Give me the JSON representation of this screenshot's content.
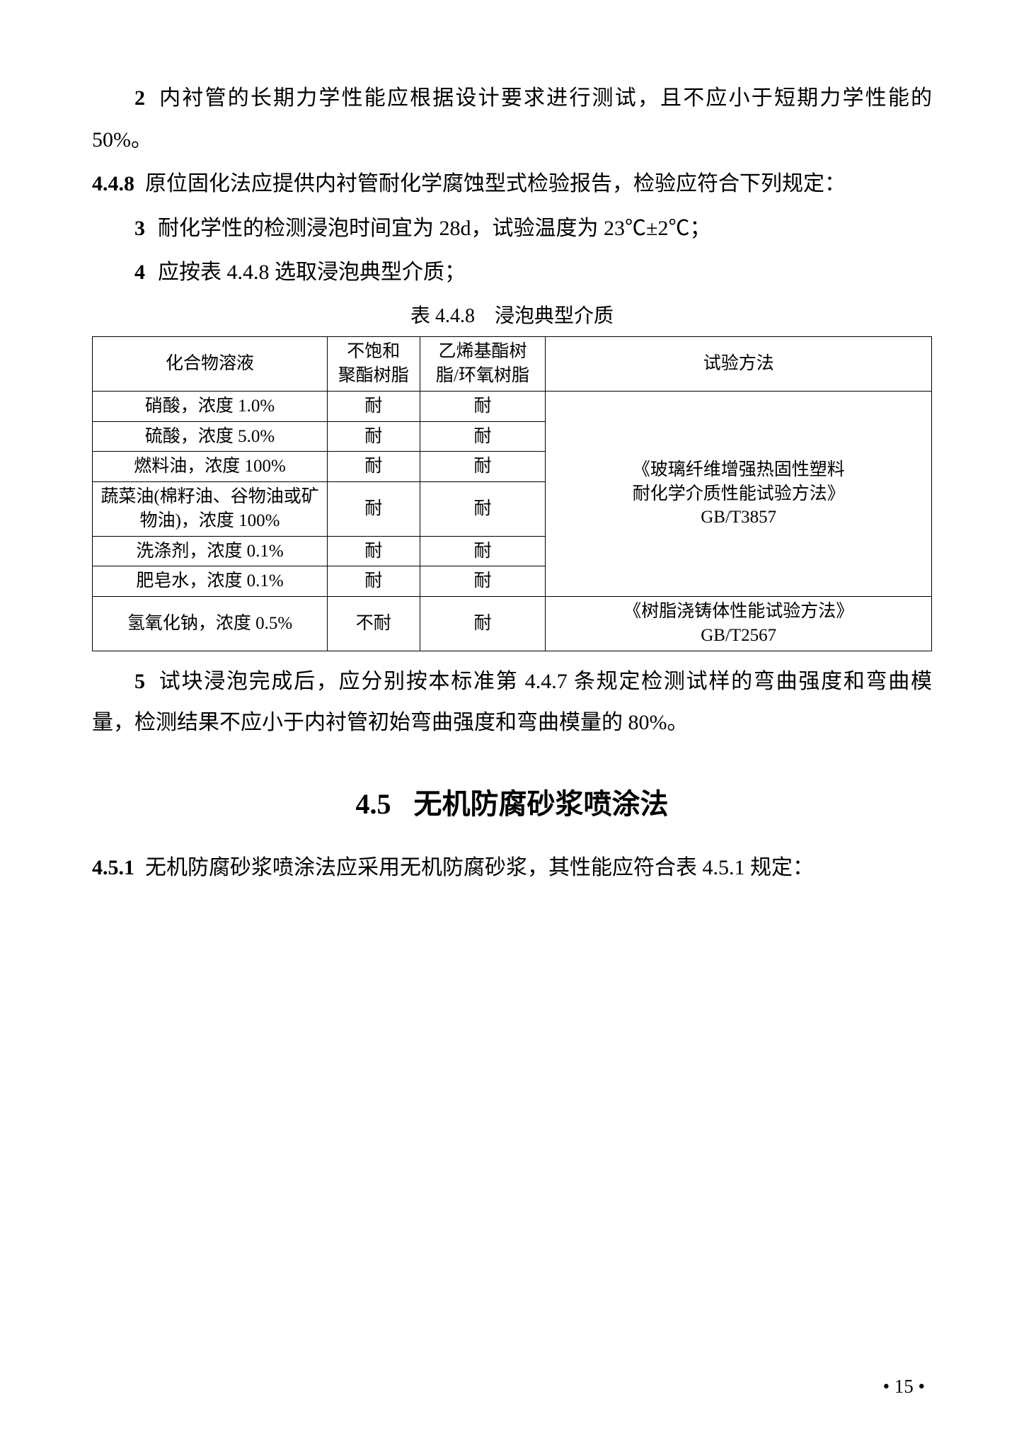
{
  "paragraphs": {
    "p1_num": "2",
    "p1_text": "内衬管的长期力学性能应根据设计要求进行测试，且不应小于短期力学性能的 50%。",
    "p2_num": "4.4.8",
    "p2_text": "原位固化法应提供内衬管耐化学腐蚀型式检验报告，检验应符合下列规定：",
    "p3_num": "3",
    "p3_text": "耐化学性的检测浸泡时间宜为 28d，试验温度为 23℃±2℃；",
    "p4_num": "4",
    "p4_text": "应按表 4.4.8 选取浸泡典型介质；",
    "p5_num": "5",
    "p5_text": "试块浸泡完成后，应分别按本标准第 4.4.7 条规定检测试样的弯曲强度和弯曲模量，检测结果不应小于内衬管初始弯曲强度和弯曲模量的 80%。"
  },
  "table448": {
    "title_prefix": "表",
    "title_num": "4.4.8",
    "title_text": "浸泡典型介质",
    "headers": {
      "compound": "化合物溶液",
      "resin1_l1": "不饱和",
      "resin1_l2": "聚酯树脂",
      "resin2_l1": "乙烯基酯树",
      "resin2_l2": "脂/环氧树脂",
      "method": "试验方法"
    },
    "rows": [
      {
        "compound": "硝酸，浓度 1.0%",
        "r1": "耐",
        "r2": "耐"
      },
      {
        "compound": "硫酸，浓度 5.0%",
        "r1": "耐",
        "r2": "耐"
      },
      {
        "compound": "燃料油，浓度 100%",
        "r1": "耐",
        "r2": "耐"
      },
      {
        "compound": "蔬菜油(棉籽油、谷物油或矿物油)，浓度 100%",
        "r1": "耐",
        "r2": "耐"
      },
      {
        "compound": "洗涤剂，浓度 0.1%",
        "r1": "耐",
        "r2": "耐"
      },
      {
        "compound": "肥皂水，浓度 0.1%",
        "r1": "耐",
        "r2": "耐"
      },
      {
        "compound": "氢氧化钠，浓度 0.5%",
        "r1": "不耐",
        "r2": "耐"
      }
    ],
    "method1_l1": "《玻璃纤维增强热固性塑料",
    "method1_l2": "耐化学介质性能试验方法》",
    "method1_l3": "GB/T3857",
    "method2_l1": "《树脂浇铸体性能试验方法》",
    "method2_l2": "GB/T2567"
  },
  "section45": {
    "num": "4.5",
    "title": "无机防腐砂浆喷涂法"
  },
  "p451_num": "4.5.1",
  "p451_text": "无机防腐砂浆喷涂法应采用无机防腐砂浆，其性能应符合表 4.5.1 规定：",
  "page_number": "15"
}
